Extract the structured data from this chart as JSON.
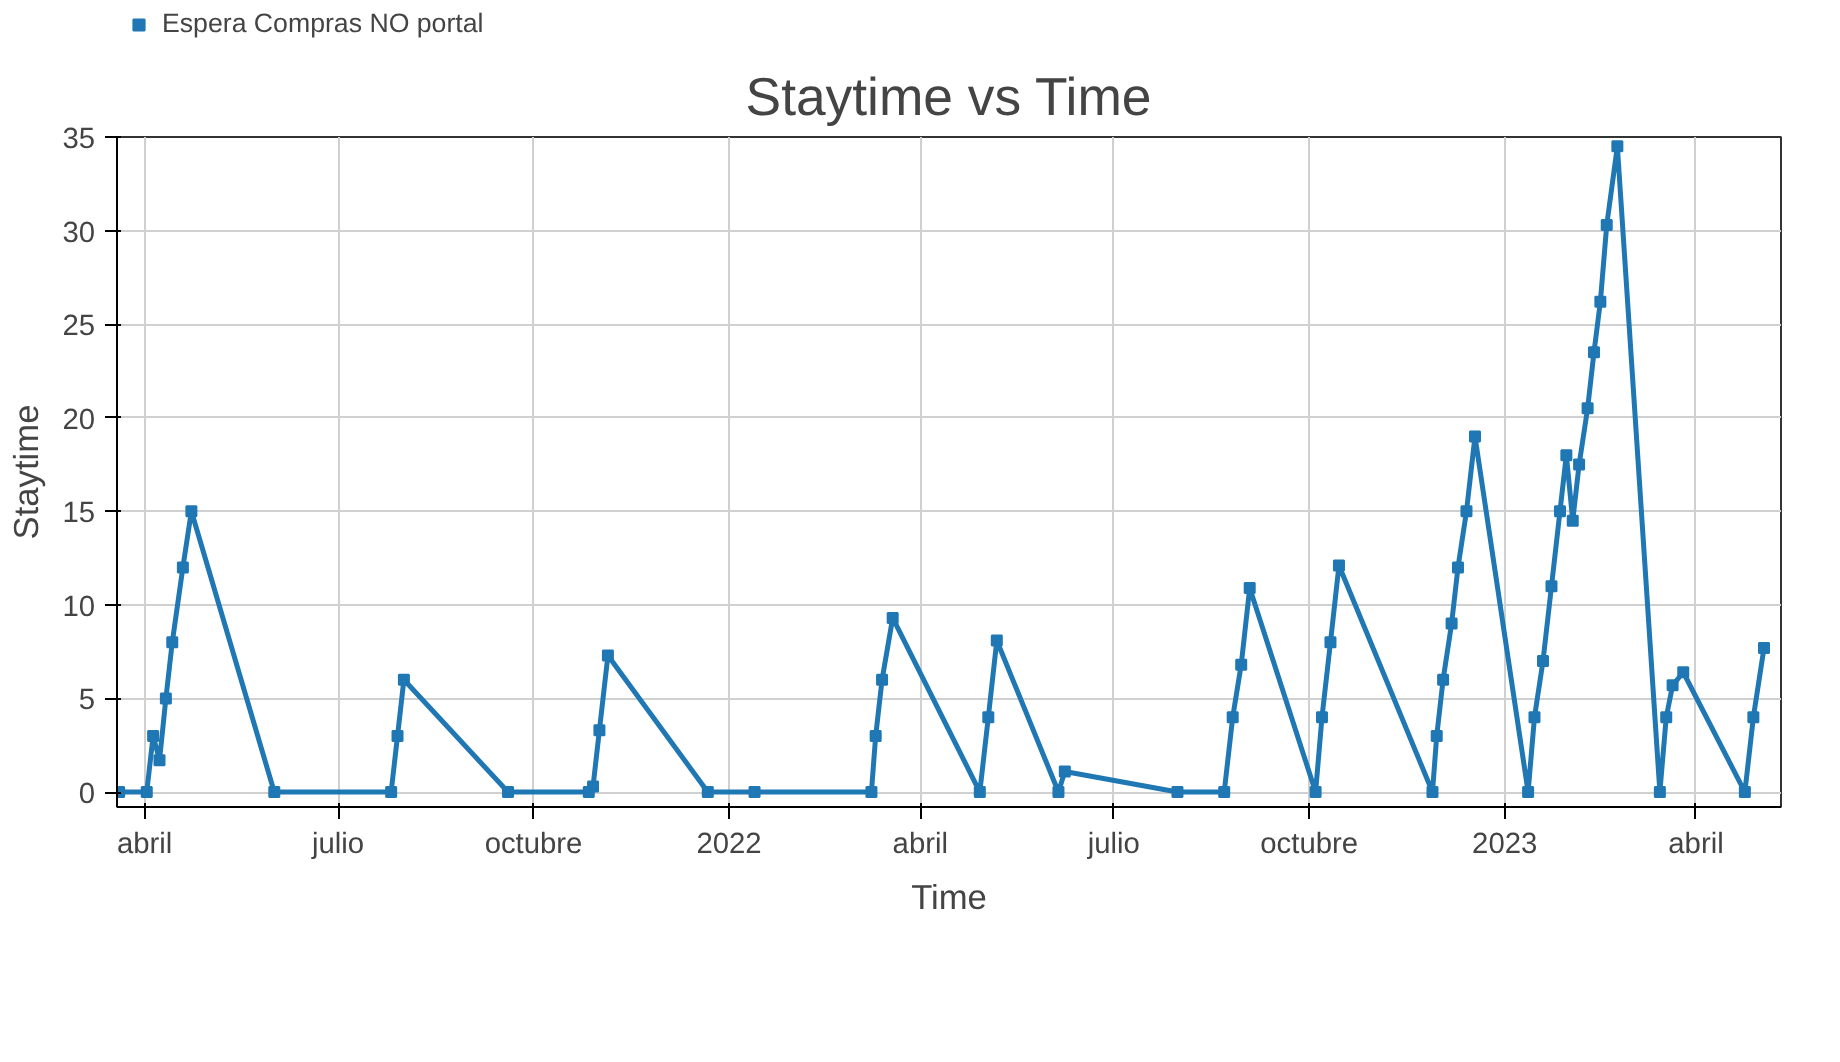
{
  "chart_data": {
    "type": "line",
    "title": "Staytime vs Time",
    "xlabel": "Time",
    "ylabel": "Staytime",
    "legend": "top left",
    "grid": true,
    "marker": "square",
    "line_style": "solid",
    "xlim": [
      "2021-03-19",
      "2023-05-11"
    ],
    "xticks": [
      {
        "value": "2021-04-01",
        "label": "abril"
      },
      {
        "value": "2021-07-01",
        "label": "julio"
      },
      {
        "value": "2021-10-01",
        "label": "octubre"
      },
      {
        "value": "2022-01-01",
        "label": "2022"
      },
      {
        "value": "2022-04-01",
        "label": "abril"
      },
      {
        "value": "2022-07-01",
        "label": "julio"
      },
      {
        "value": "2022-10-01",
        "label": "octubre"
      },
      {
        "value": "2023-01-01",
        "label": "2023"
      },
      {
        "value": "2023-04-01",
        "label": "abril"
      }
    ],
    "ylim": [
      -0.8,
      35
    ],
    "yticks": [
      0,
      5,
      10,
      15,
      20,
      25,
      30,
      35
    ],
    "x": [
      "2021-03-20",
      "2021-04-02",
      "2021-04-05",
      "2021-04-08",
      "2021-04-11",
      "2021-04-14",
      "2021-04-19",
      "2021-04-23",
      "2021-06-01",
      "2021-07-26",
      "2021-07-29",
      "2021-08-01",
      "2021-09-19",
      "2021-10-27",
      "2021-10-29",
      "2021-11-01",
      "2021-11-05",
      "2021-12-22",
      "2022-01-13",
      "2022-03-09",
      "2022-03-11",
      "2022-03-14",
      "2022-03-19",
      "2022-04-29",
      "2022-05-03",
      "2022-05-07",
      "2022-06-05",
      "2022-06-08",
      "2022-07-31",
      "2022-08-22",
      "2022-08-26",
      "2022-08-30",
      "2022-09-03",
      "2022-10-04",
      "2022-10-07",
      "2022-10-11",
      "2022-10-15",
      "2022-11-28",
      "2022-11-30",
      "2022-12-03",
      "2022-12-07",
      "2022-12-10",
      "2022-12-14",
      "2022-12-18",
      "2023-01-12",
      "2023-01-15",
      "2023-01-19",
      "2023-01-23",
      "2023-01-27",
      "2023-01-30",
      "2023-02-02",
      "2023-02-05",
      "2023-02-09",
      "2023-02-12",
      "2023-02-15",
      "2023-02-18",
      "2023-02-23",
      "2023-03-15",
      "2023-03-18",
      "2023-03-21",
      "2023-03-26",
      "2023-04-24",
      "2023-04-28",
      "2023-05-03"
    ],
    "series": [
      {
        "name": "Espera Compras NO portal",
        "color": "#1f77b4",
        "values": [
          0,
          0,
          3,
          1.7,
          5,
          8,
          12,
          15,
          0,
          0,
          3,
          6,
          0,
          0,
          0.3,
          3.3,
          7.3,
          0,
          0,
          0,
          3,
          6,
          9.3,
          0,
          4,
          8.1,
          0,
          1.1,
          0,
          0,
          4,
          6.8,
          10.9,
          0,
          4,
          8,
          12.1,
          0,
          3,
          6,
          9,
          12,
          15,
          19,
          0,
          4,
          7,
          11,
          15,
          18,
          14.5,
          17.5,
          20.5,
          23.5,
          26.2,
          30.3,
          34.5,
          0,
          4,
          5.7,
          6.4,
          0,
          4,
          7.7
        ]
      }
    ]
  }
}
